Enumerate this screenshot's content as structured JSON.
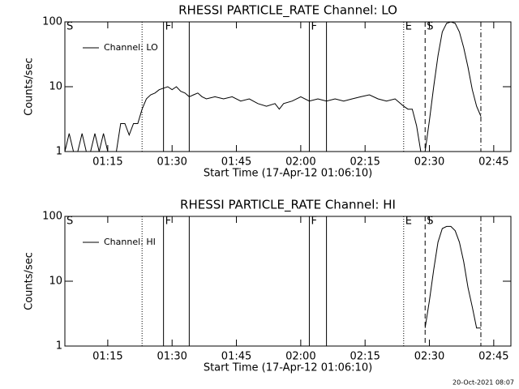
{
  "footer": "20-Oct-2021 08:07",
  "chart_data": [
    {
      "type": "line",
      "title": "RHESSI PARTICLE_RATE Channel: LO",
      "xlabel": "Start Time (17-Apr-12 01:06:10)",
      "ylabel": "Counts/sec",
      "log_y": true,
      "legend": "upper left",
      "xlim": [
        "01:05",
        "02:49"
      ],
      "xticks": [
        "01:15",
        "01:30",
        "01:45",
        "02:00",
        "02:15",
        "02:30",
        "02:45"
      ],
      "ylim": [
        1,
        100
      ],
      "yticks": [
        1,
        10,
        100
      ],
      "markers": [
        {
          "x": "01:05",
          "label": "S"
        },
        {
          "x": "01:28",
          "label": "F"
        },
        {
          "x": "02:02",
          "label": "F"
        },
        {
          "x": "02:24",
          "label": "E"
        },
        {
          "x": "02:29",
          "label": "S"
        }
      ],
      "lines": [
        {
          "x": "01:23",
          "style": "dotted"
        },
        {
          "x": "01:28",
          "style": "solid"
        },
        {
          "x": "01:34",
          "style": "solid"
        },
        {
          "x": "02:02",
          "style": "solid"
        },
        {
          "x": "02:06",
          "style": "solid"
        },
        {
          "x": "02:24",
          "style": "dotted"
        },
        {
          "x": "02:29",
          "style": "dashed"
        },
        {
          "x": "02:42",
          "style": "dashdot"
        }
      ],
      "x": [
        "01:05",
        "01:06",
        "01:07",
        "01:08",
        "01:09",
        "01:10",
        "01:11",
        "01:12",
        "01:13",
        "01:14",
        "01:15",
        "01:16",
        "01:17",
        "01:18",
        "01:19",
        "01:20",
        "01:21",
        "01:22",
        "01:23",
        "01:24",
        "01:25",
        "01:26",
        "01:27",
        "01:28",
        "01:29",
        "01:30",
        "01:31",
        "01:32",
        "01:33",
        "01:34",
        "01:35",
        "01:36",
        "01:37",
        "01:38",
        "01:40",
        "01:42",
        "01:44",
        "01:46",
        "01:48",
        "01:50",
        "01:52",
        "01:54",
        "01:55",
        "01:56",
        "01:58",
        "02:00",
        "02:02",
        "02:04",
        "02:06",
        "02:08",
        "02:10",
        "02:12",
        "02:14",
        "02:16",
        "02:18",
        "02:20",
        "02:22",
        "02:24",
        "02:25",
        "02:26",
        "02:27",
        "02:28",
        "02:29",
        "02:30",
        "02:31",
        "02:32",
        "02:33",
        "02:34",
        "02:35",
        "02:36",
        "02:37",
        "02:38",
        "02:39",
        "02:40",
        "02:41",
        "02:42"
      ],
      "series": [
        {
          "name": "Channel: LO",
          "color": "#000000",
          "values": [
            1,
            1.9,
            1,
            1,
            1.9,
            1,
            1,
            1.9,
            1,
            1.9,
            1,
            1,
            1,
            2.7,
            2.7,
            1.8,
            2.7,
            2.7,
            4.5,
            6.5,
            7.5,
            8,
            9,
            9.5,
            10,
            9,
            10,
            8.5,
            8,
            7,
            7.5,
            8,
            7,
            6.5,
            7,
            6.5,
            7,
            6,
            6.5,
            5.5,
            5,
            5.5,
            4.5,
            5.5,
            6,
            7,
            6,
            6.5,
            6,
            6.5,
            6,
            6.5,
            7,
            7.5,
            6.5,
            6,
            6.5,
            5,
            4.5,
            4.5,
            2.5,
            1,
            1,
            3,
            10,
            30,
            70,
            95,
            100,
            95,
            70,
            40,
            20,
            9,
            5,
            3.5
          ]
        }
      ]
    },
    {
      "type": "line",
      "title": "RHESSI PARTICLE_RATE Channel: HI",
      "xlabel": "Start Time (17-Apr-12 01:06:10)",
      "ylabel": "Counts/sec",
      "log_y": true,
      "legend": "upper left",
      "xlim": [
        "01:05",
        "02:49"
      ],
      "xticks": [
        "01:15",
        "01:30",
        "01:45",
        "02:00",
        "02:15",
        "02:30",
        "02:45"
      ],
      "ylim": [
        1,
        100
      ],
      "yticks": [
        1,
        10,
        100
      ],
      "markers": [
        {
          "x": "01:05",
          "label": "S"
        },
        {
          "x": "01:28",
          "label": "F"
        },
        {
          "x": "02:02",
          "label": "F"
        },
        {
          "x": "02:24",
          "label": "E"
        },
        {
          "x": "02:29",
          "label": "S"
        }
      ],
      "lines": [
        {
          "x": "01:23",
          "style": "dotted"
        },
        {
          "x": "01:28",
          "style": "solid"
        },
        {
          "x": "01:34",
          "style": "solid"
        },
        {
          "x": "02:02",
          "style": "solid"
        },
        {
          "x": "02:06",
          "style": "solid"
        },
        {
          "x": "02:24",
          "style": "dotted"
        },
        {
          "x": "02:29",
          "style": "dashed"
        },
        {
          "x": "02:42",
          "style": "dashdot"
        }
      ],
      "x": [
        "02:29",
        "02:30",
        "02:31",
        "02:32",
        "02:33",
        "02:34",
        "02:35",
        "02:36",
        "02:37",
        "02:38",
        "02:39",
        "02:40",
        "02:41",
        "02:42"
      ],
      "series": [
        {
          "name": "Channel: HI",
          "color": "#000000",
          "values": [
            1.9,
            5,
            15,
            40,
            65,
            70,
            70,
            60,
            40,
            20,
            8,
            4,
            1.9,
            1.9
          ]
        }
      ]
    }
  ]
}
